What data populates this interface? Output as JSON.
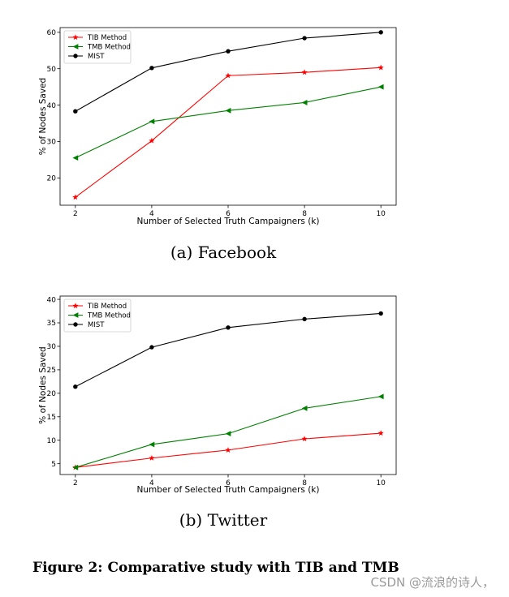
{
  "chart_data": [
    {
      "type": "line",
      "subcaption": "(a) Facebook",
      "xlabel": "Number of Selected Truth Campaigners (k)",
      "ylabel": "% of Nodes Saved",
      "x": [
        2,
        4,
        6,
        8,
        10
      ],
      "xlim": [
        1.6,
        10.4
      ],
      "ylim": [
        12.5,
        61.3
      ],
      "xticks": [
        "2",
        "4",
        "6",
        "8",
        "10"
      ],
      "yticks": [
        "20",
        "30",
        "40",
        "50",
        "60"
      ],
      "ytick_values": [
        20,
        30,
        40,
        50,
        60
      ],
      "legend_position": "top-left",
      "series": [
        {
          "name": "TIB Method",
          "values": [
            14.7,
            30.2,
            48.1,
            49.0,
            50.3
          ],
          "color": "#ff0000",
          "marker": "star"
        },
        {
          "name": "TMB Method",
          "values": [
            25.5,
            35.5,
            38.5,
            40.7,
            45.0
          ],
          "color": "#008000",
          "marker": "triangle-left"
        },
        {
          "name": "MIST",
          "values": [
            38.3,
            50.2,
            54.8,
            58.4,
            60.0
          ],
          "color": "#000000",
          "marker": "circle"
        }
      ]
    },
    {
      "type": "line",
      "subcaption": "(b) Twitter",
      "xlabel": "Number of Selected Truth Campaigners (k)",
      "ylabel": "% of Nodes Saved",
      "x": [
        2,
        4,
        6,
        8,
        10
      ],
      "xlim": [
        1.6,
        10.4
      ],
      "ylim": [
        2.7,
        40.7
      ],
      "xticks": [
        "2",
        "4",
        "6",
        "8",
        "10"
      ],
      "yticks": [
        "5",
        "10",
        "15",
        "20",
        "25",
        "30",
        "35",
        "40"
      ],
      "ytick_values": [
        5,
        10,
        15,
        20,
        25,
        30,
        35,
        40
      ],
      "legend_position": "top-left",
      "series": [
        {
          "name": "TIB Method",
          "values": [
            4.2,
            6.2,
            7.9,
            10.3,
            11.5
          ],
          "color": "#ff0000",
          "marker": "star"
        },
        {
          "name": "TMB Method",
          "values": [
            4.2,
            9.1,
            11.4,
            16.8,
            19.3
          ],
          "color": "#008000",
          "marker": "triangle-left"
        },
        {
          "name": "MIST",
          "values": [
            21.4,
            29.8,
            34.0,
            35.8,
            37.0
          ],
          "color": "#000000",
          "marker": "circle"
        }
      ]
    }
  ],
  "figure_caption": "Figure 2: Comparative study with TIB and TMB",
  "watermark": "CSDN @流浪的诗人，"
}
